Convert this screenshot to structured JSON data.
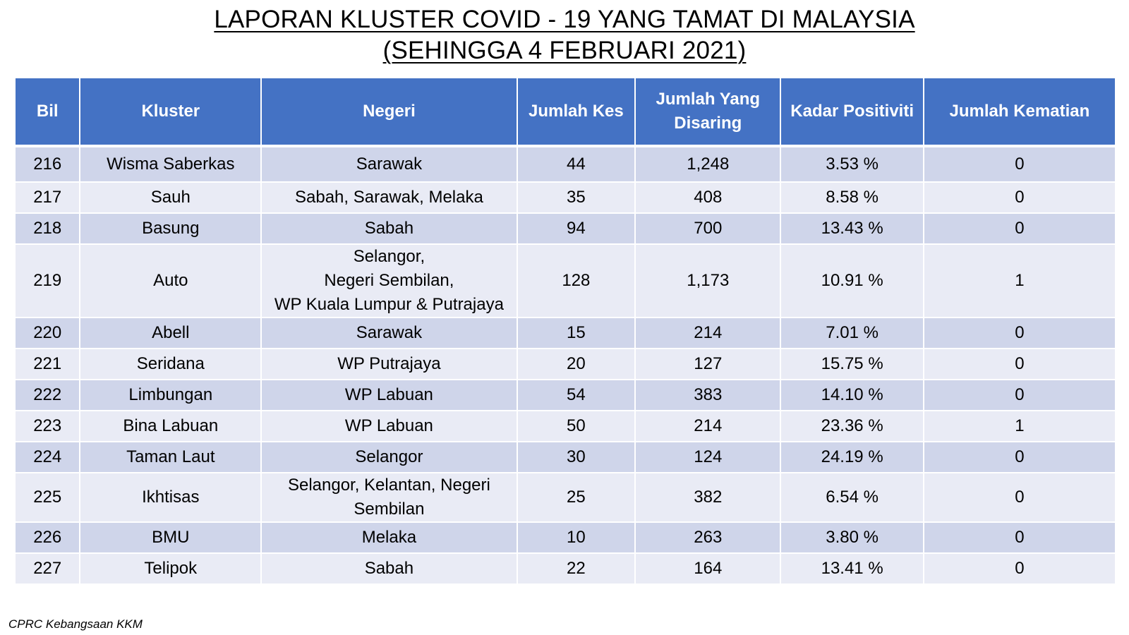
{
  "title": {
    "line1": "LAPORAN KLUSTER COVID - 19 YANG TAMAT DI MALAYSIA",
    "line2": "(SEHINGGA 4 FEBRUARI 2021)"
  },
  "table": {
    "headers": {
      "bil": "Bil",
      "kluster": "Kluster",
      "negeri": "Negeri",
      "jumlah_kes": "Jumlah Kes",
      "jumlah_disaring": "Jumlah Yang Disaring",
      "kadar_positiviti": "Kadar Positiviti",
      "jumlah_kematian": "Jumlah Kematian"
    },
    "rows": [
      {
        "bil": "216",
        "kluster": "Wisma Saberkas",
        "negeri": "Sarawak",
        "kes": "44",
        "disaring": "1,248",
        "positiviti": "3.53 %",
        "kematian": "0"
      },
      {
        "bil": "217",
        "kluster": "Sauh",
        "negeri": "Sabah, Sarawak, Melaka",
        "kes": "35",
        "disaring": "408",
        "positiviti": "8.58 %",
        "kematian": "0"
      },
      {
        "bil": "218",
        "kluster": "Basung",
        "negeri": "Sabah",
        "kes": "94",
        "disaring": "700",
        "positiviti": "13.43 %",
        "kematian": "0"
      },
      {
        "bil": "219",
        "kluster": "Auto",
        "negeri": "Selangor,\nNegeri Sembilan,\nWP Kuala Lumpur & Putrajaya",
        "kes": "128",
        "disaring": "1,173",
        "positiviti": "10.91 %",
        "kematian": "1"
      },
      {
        "bil": "220",
        "kluster": "Abell",
        "negeri": "Sarawak",
        "kes": "15",
        "disaring": "214",
        "positiviti": "7.01 %",
        "kematian": "0"
      },
      {
        "bil": "221",
        "kluster": "Seridana",
        "negeri": "WP Putrajaya",
        "kes": "20",
        "disaring": "127",
        "positiviti": "15.75 %",
        "kematian": "0"
      },
      {
        "bil": "222",
        "kluster": "Limbungan",
        "negeri": "WP Labuan",
        "kes": "54",
        "disaring": "383",
        "positiviti": "14.10 %",
        "kematian": "0"
      },
      {
        "bil": "223",
        "kluster": "Bina Labuan",
        "negeri": "WP Labuan",
        "kes": "50",
        "disaring": "214",
        "positiviti": "23.36 %",
        "kematian": "1"
      },
      {
        "bil": "224",
        "kluster": "Taman Laut",
        "negeri": "Selangor",
        "kes": "30",
        "disaring": "124",
        "positiviti": "24.19 %",
        "kematian": "0"
      },
      {
        "bil": "225",
        "kluster": "Ikhtisas",
        "negeri": "Selangor, Kelantan, Negeri\nSembilan",
        "kes": "25",
        "disaring": "382",
        "positiviti": "6.54 %",
        "kematian": "0"
      },
      {
        "bil": "226",
        "kluster": "BMU",
        "negeri": "Melaka",
        "kes": "10",
        "disaring": "263",
        "positiviti": "3.80 %",
        "kematian": "0"
      },
      {
        "bil": "227",
        "kluster": "Telipok",
        "negeri": "Sabah",
        "kes": "22",
        "disaring": "164",
        "positiviti": "13.41 %",
        "kematian": "0"
      }
    ]
  },
  "footer": {
    "source": "CPRC Kebangsaan KKM"
  },
  "colors": {
    "header_bg": "#4472c4",
    "row_dark": "#cfd5ea",
    "row_light": "#e9ebf5"
  }
}
